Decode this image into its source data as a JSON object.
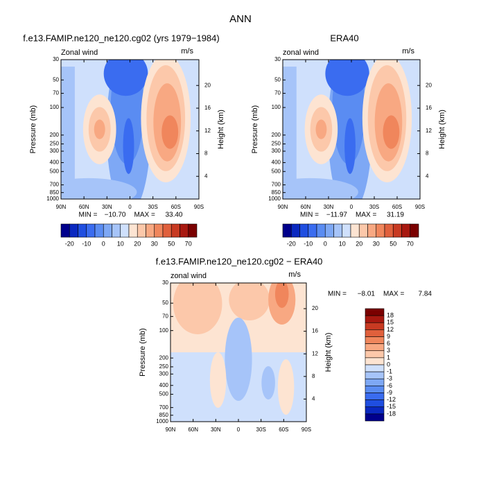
{
  "title": "ANN",
  "panels": [
    {
      "title": "f.e13.FAMIP.ne120_ne120.cg02 (yrs 1979−1984)",
      "left_label": "Zonal wind",
      "right_label": "m/s",
      "y_label": "Pressure (mb)",
      "y2_label": "Height (km)",
      "min_label": "MIN =",
      "min": "−10.70",
      "max_label": "MAX =",
      "max": "33.40"
    },
    {
      "title": "ERA40",
      "left_label": "zonal wind",
      "right_label": "m/s",
      "y_label": "Pressure (mb)",
      "y2_label": "Height (km)",
      "min_label": "MIN =",
      "min": "−11.97",
      "max_label": "MAX =",
      "max": "31.19"
    },
    {
      "title": "f.e13.FAMIP.ne120_ne120.cg02 − ERA40",
      "left_label": "zonal wind",
      "right_label": "m/s",
      "y_label": "Pressure (mb)",
      "y2_label": "Height (km)",
      "min_label": "MIN =",
      "min": "−8.01",
      "max_label": "MAX =",
      "max": "7.84"
    }
  ],
  "ylim": [
    30,
    1000
  ],
  "pressure_ticks": [
    30,
    50,
    70,
    100,
    200,
    250,
    300,
    400,
    500,
    700,
    850,
    1000
  ],
  "height_ticks": [
    4,
    8,
    12,
    16,
    20
  ],
  "lat_ticks": [
    "90N",
    "60N",
    "30N",
    "0",
    "30S",
    "60S",
    "90S"
  ],
  "colors": [
    "#00008c",
    "#0a28c0",
    "#1f4ee0",
    "#3a6cf0",
    "#5a8cf2",
    "#7ea8f5",
    "#a6c4f9",
    "#cfe0fc",
    "#fde4d2",
    "#fcc8aa",
    "#f8a882",
    "#f0865c",
    "#e0603c",
    "#c83a22",
    "#a81810",
    "#7a0000"
  ],
  "colorbar_top_labels": [
    -20,
    -10,
    0,
    10,
    20,
    30,
    50,
    70
  ],
  "colorbar_diff_labels": [
    18,
    15,
    12,
    9,
    6,
    3,
    1,
    0,
    -1,
    -3,
    -6,
    -9,
    -12,
    -15,
    -18
  ]
}
